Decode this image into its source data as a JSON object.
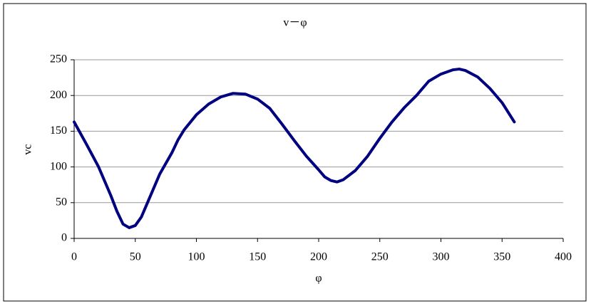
{
  "chart_data": {
    "type": "line",
    "title": "v－φ",
    "x_label": "φ",
    "y_label": "vc",
    "x": [
      0,
      10,
      20,
      30,
      35,
      40,
      45,
      50,
      55,
      60,
      70,
      80,
      85,
      90,
      100,
      110,
      120,
      130,
      140,
      150,
      160,
      170,
      180,
      190,
      200,
      205,
      210,
      215,
      220,
      230,
      240,
      250,
      260,
      270,
      280,
      290,
      300,
      310,
      315,
      320,
      330,
      340,
      350,
      360
    ],
    "series": [
      {
        "name": "vc",
        "color": "#000080",
        "values": [
          163,
          132,
          100,
          60,
          38,
          20,
          15,
          18,
          30,
          50,
          90,
          120,
          138,
          152,
          173,
          188,
          198,
          203,
          202,
          195,
          182,
          160,
          137,
          115,
          96,
          86,
          81,
          79,
          82,
          95,
          115,
          140,
          163,
          183,
          200,
          220,
          230,
          236,
          237,
          235,
          226,
          210,
          190,
          163
        ]
      }
    ],
    "xlim": [
      0,
      400
    ],
    "xticks": [
      0,
      50,
      100,
      150,
      200,
      250,
      300,
      350,
      400
    ],
    "ylim": [
      0,
      250
    ],
    "yticks": [
      0,
      50,
      100,
      150,
      200,
      250
    ],
    "grid": true
  }
}
